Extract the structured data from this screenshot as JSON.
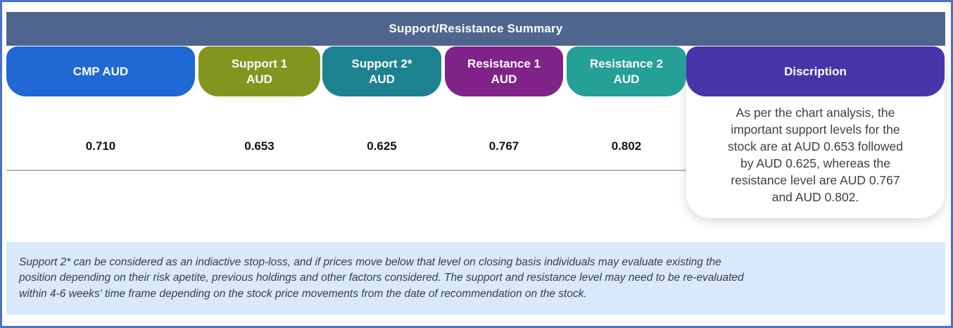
{
  "header": {
    "title": "Support/Resistance Summary"
  },
  "table": {
    "columns": [
      {
        "id": "cmp",
        "label": "CMP AUD",
        "color": "#2068d4",
        "value": "0.710"
      },
      {
        "id": "support1",
        "label": "Support 1\nAUD",
        "color": "#84951f",
        "value": "0.653"
      },
      {
        "id": "support2",
        "label": "Support 2*\nAUD",
        "color": "#1d8290",
        "value": "0.625"
      },
      {
        "id": "resistance1",
        "label": "Resistance 1\nAUD",
        "color": "#802389",
        "value": "0.767"
      },
      {
        "id": "resistance2",
        "label": "Resistance 2\nAUD",
        "color": "#25a097",
        "value": "0.802"
      },
      {
        "id": "description",
        "label": "Discription",
        "color": "#4535a9",
        "value": ""
      }
    ],
    "description": "As per the chart analysis, the\nimportant support levels for the\nstock are at AUD 0.653 followed\nby AUD 0.625, whereas the\nresistance level are AUD 0.767\nand AUD 0.802."
  },
  "footnote": {
    "text": "Support 2* can be considered as an indiactive stop-loss, and if prices move below that level on closing basis individuals may evaluate existing the\nposition depending on their risk apetite, previous holdings and other factors considered. The support and resistance level may need to be re-evaluated\nwithin 4-6 weeks' time frame depending on the stock price movements from  the date of recommendation on the stock."
  },
  "colors": {
    "frame_border": "#4873c8",
    "header_bar": "#50658e",
    "cmp": "#2068d4",
    "support1": "#84951f",
    "support2": "#1d8290",
    "resistance1": "#802389",
    "resistance2": "#25a097",
    "description": "#4535a9",
    "footnote_bg": "#d7e9fa",
    "divider": "#b9b9b9",
    "value_text": "#141414",
    "body_text": "#3d3d3d"
  }
}
